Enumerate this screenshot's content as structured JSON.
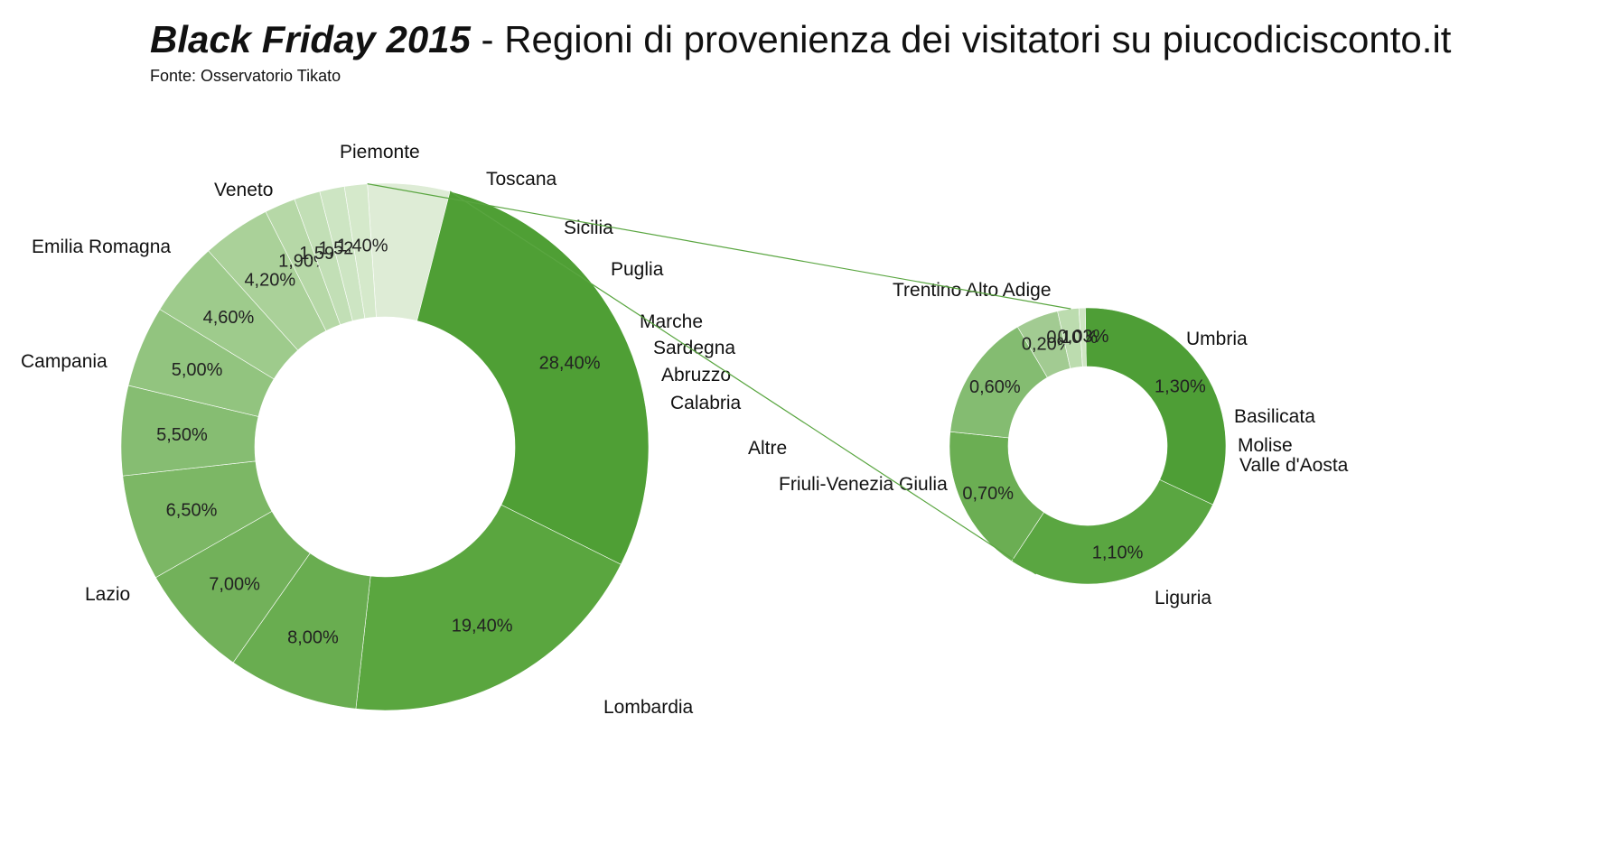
{
  "header": {
    "title_bold": "Black Friday 2015",
    "title_rest": " - Regioni di provenienza dei visitatori su piucodicisconto.it",
    "subtitle": "Fonte: Osservatorio Tikato"
  },
  "chart_data": [
    {
      "type": "pie",
      "style": "donut",
      "start_angle_deg": 93.8,
      "direction": "clockwise",
      "categories": [
        "Altre",
        "Lombardia",
        "Lazio",
        "Campania",
        "Emilia Romagna",
        "Veneto",
        "Piemonte",
        "Toscana",
        "Sicilia",
        "Puglia",
        "Marche",
        "Sardegna",
        "Abruzzo",
        "Calabria"
      ],
      "values": [
        5.03,
        28.4,
        19.4,
        8.0,
        7.0,
        6.5,
        5.5,
        5.0,
        4.6,
        4.2,
        1.9,
        1.59,
        1.52,
        1.4
      ],
      "value_labels": [
        "",
        "28,40%",
        "19,40%",
        "8,00%",
        "7,00%",
        "6,50%",
        "5,50%",
        "5,00%",
        "4,60%",
        "4,20%",
        "1,90%",
        "1,59%",
        "1,52%",
        "1,40%"
      ],
      "colors": [
        "#deecd6",
        "#4f9f35",
        "#5aa63f",
        "#69ad50",
        "#72b15a",
        "#7cb765",
        "#86bd72",
        "#92c47f",
        "#9ecb8c",
        "#aad199",
        "#b6d8a7",
        "#c2dfb6",
        "#cde5c3",
        "#d5e9cb"
      ]
    },
    {
      "type": "pie",
      "style": "donut",
      "start_angle_deg": 91,
      "direction": "clockwise",
      "categories": [
        "Liguria",
        "Friuli-Venezia Giulia",
        "Trentino  Alto Adige",
        "Umbria",
        "Basilicata",
        "Molise",
        "Valle d'Aosta"
      ],
      "values": [
        1.3,
        1.1,
        0.7,
        0.6,
        0.2,
        0.1,
        0.03
      ],
      "value_labels": [
        "1,30%",
        "1,10%",
        "0,70%",
        "0,60%",
        "0,20%",
        "0,10%",
        "0,03%"
      ],
      "colors": [
        "#4e9e36",
        "#5aa641",
        "#6bae53",
        "#84bc71",
        "#a2cb92",
        "#bcdcaf",
        "#cfe6c4"
      ]
    }
  ]
}
